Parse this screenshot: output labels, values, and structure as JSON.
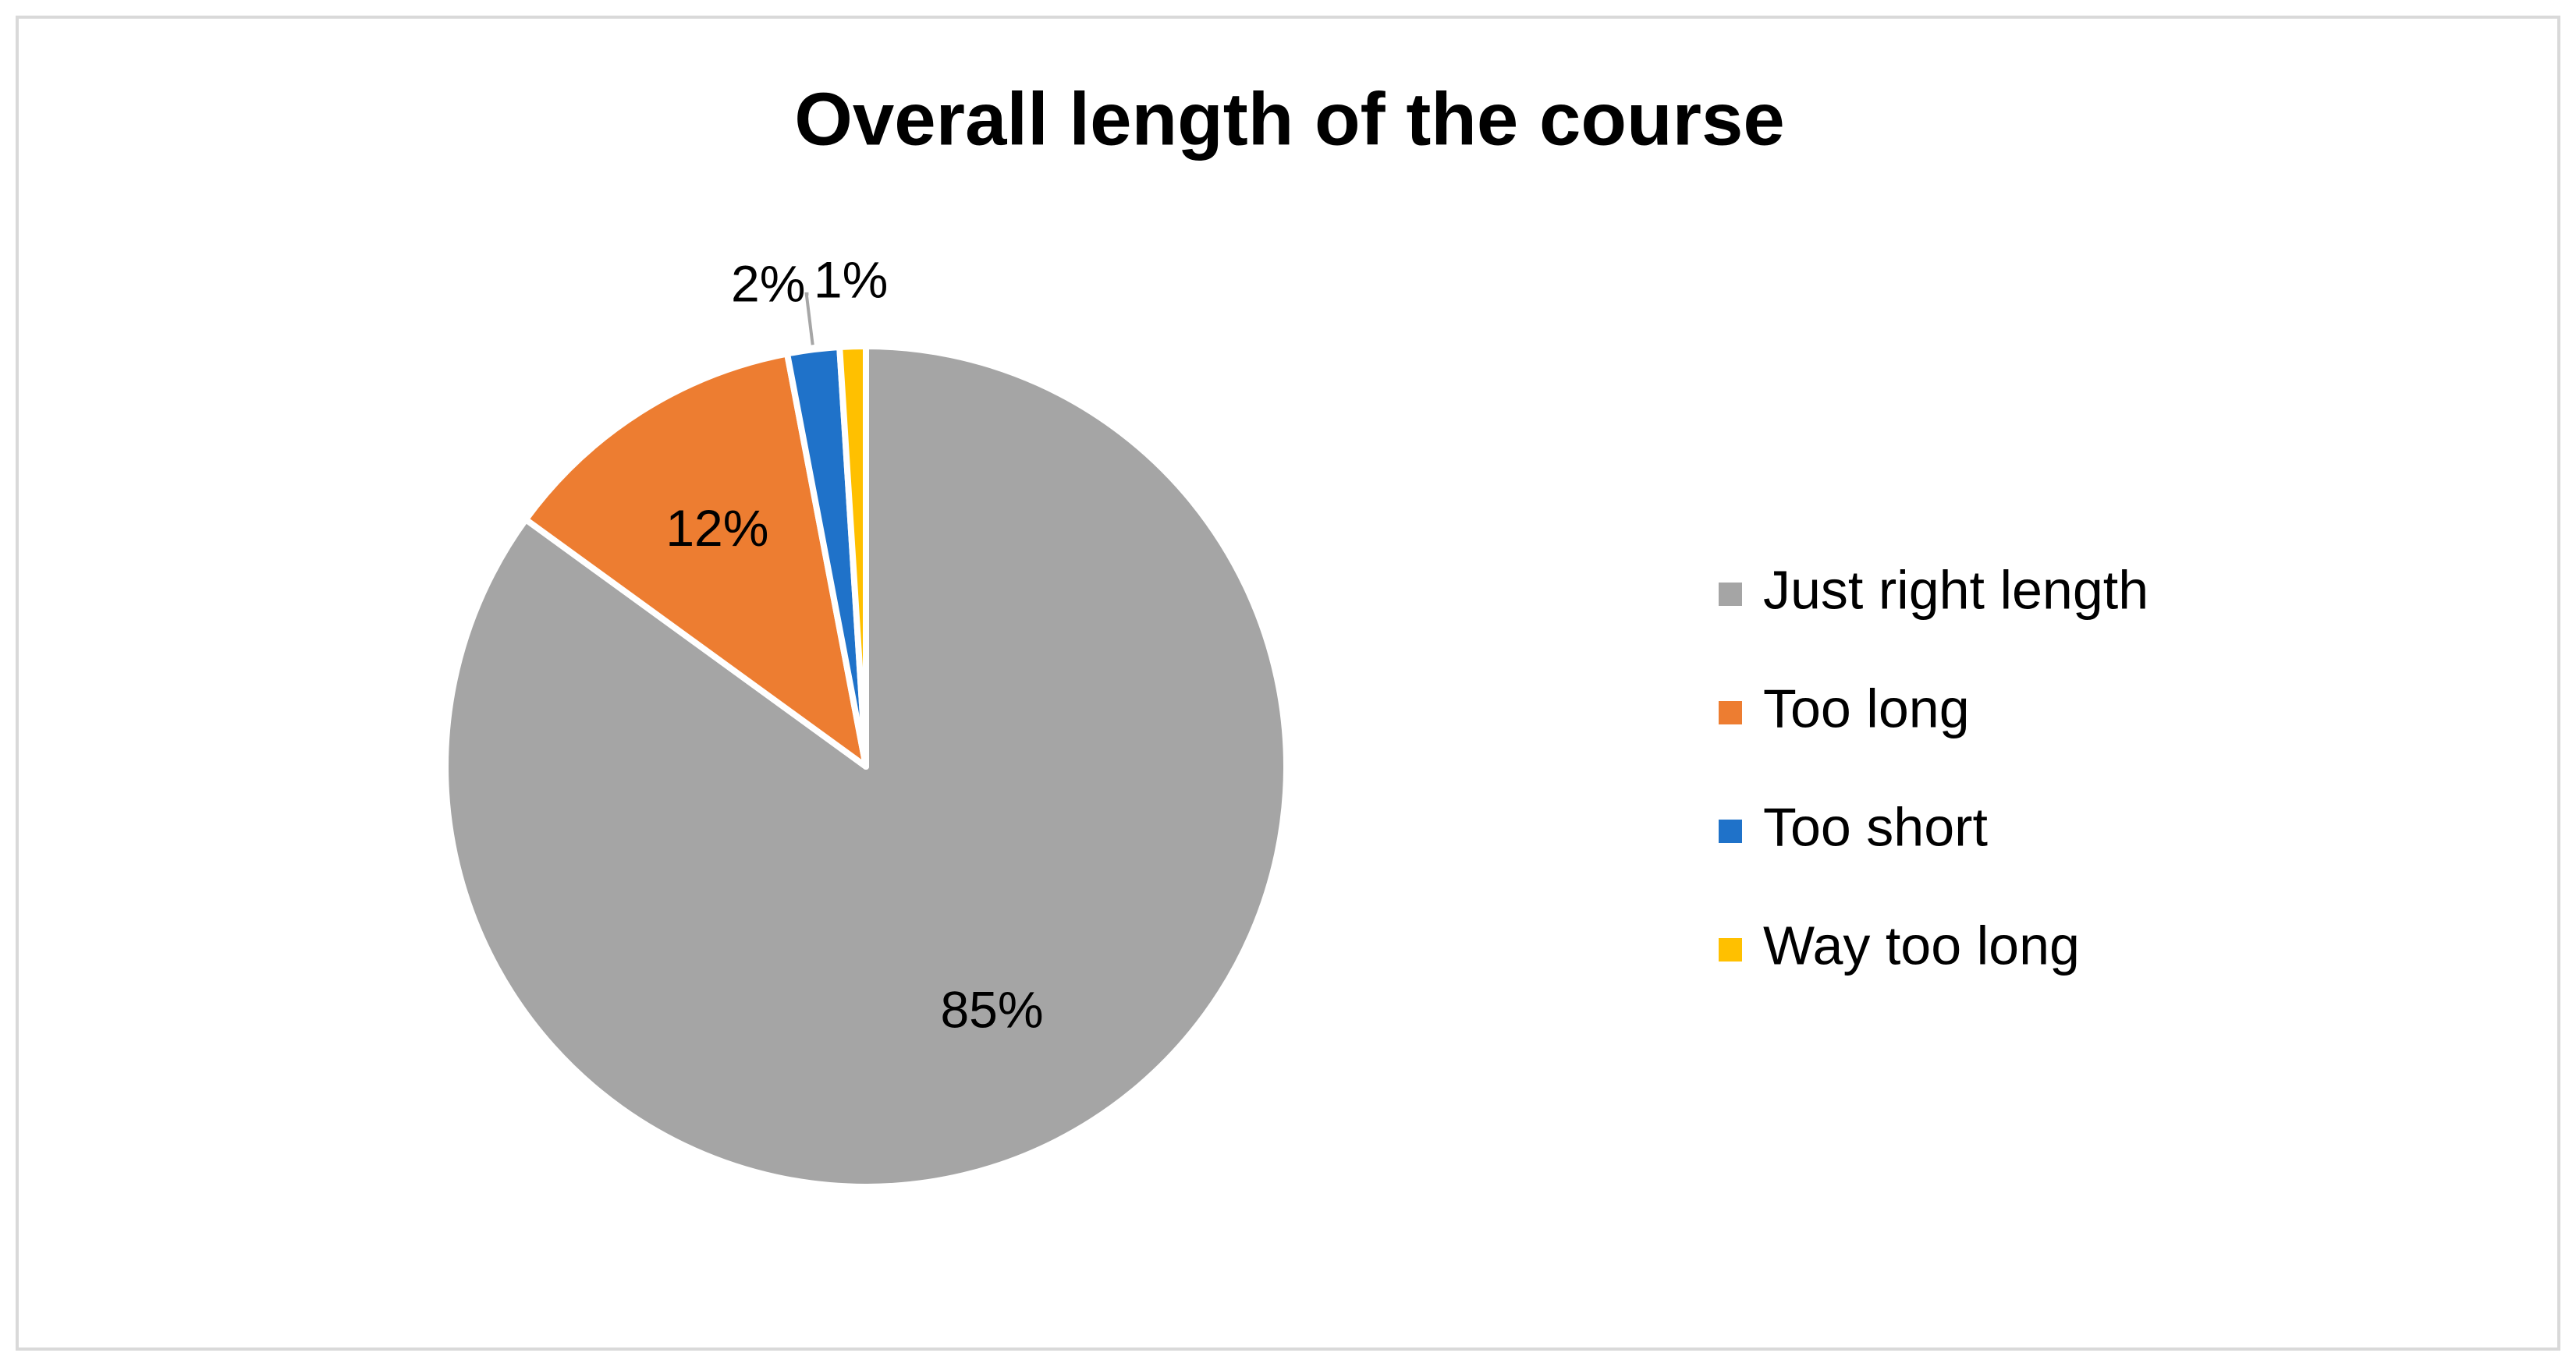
{
  "chart_data": {
    "type": "pie",
    "title": "Overall length of the course",
    "categories": [
      "Just right length",
      "Too long",
      "Too short",
      "Way too long"
    ],
    "values": [
      85,
      12,
      2,
      1
    ],
    "value_labels": [
      "85%",
      "12%",
      "2%",
      "1%"
    ],
    "colors": [
      "#a5a5a5",
      "#ed7d31",
      "#1f72c9",
      "#ffc000"
    ],
    "legend": "right"
  }
}
